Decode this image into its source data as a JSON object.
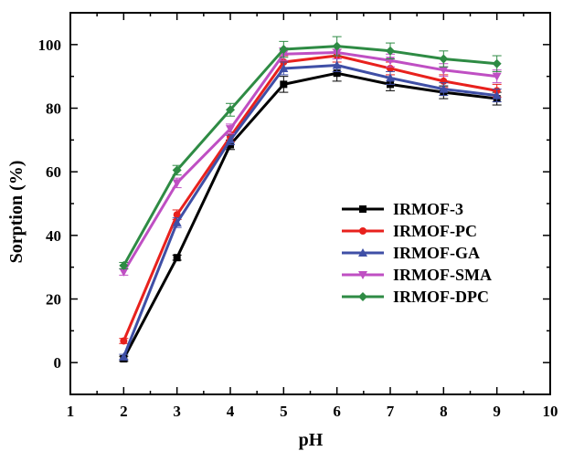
{
  "chart_data": {
    "type": "line",
    "title": "",
    "xlabel": "pH",
    "ylabel": "Sorption (%)",
    "xlim": [
      1,
      10
    ],
    "ylim": [
      -10,
      110
    ],
    "xticks": [
      1,
      2,
      3,
      4,
      5,
      6,
      7,
      8,
      9,
      10
    ],
    "yticks": [
      0,
      20,
      40,
      60,
      80,
      100
    ],
    "grid": false,
    "legend_position": "center-right",
    "x": [
      2,
      3,
      4,
      5,
      6,
      7,
      8,
      9
    ],
    "series": [
      {
        "name": "IRMOF-3",
        "color": "#000000",
        "marker": "square",
        "values": [
          1.2,
          33,
          68.5,
          87.5,
          91,
          87.5,
          85,
          83
        ],
        "errors": [
          0.8,
          0.8,
          1.5,
          2.5,
          2.5,
          2.0,
          2.0,
          2.0
        ]
      },
      {
        "name": "IRMOF-PC",
        "color": "#e8211d",
        "marker": "circle",
        "values": [
          6.8,
          46.5,
          71,
          94.5,
          96.5,
          92.5,
          88.5,
          85.5
        ],
        "errors": [
          0.8,
          1.5,
          1.5,
          2.0,
          2.0,
          2.0,
          2.0,
          2.0
        ]
      },
      {
        "name": "IRMOF-GA",
        "color": "#3f4fa6",
        "marker": "triangle-up",
        "values": [
          1.8,
          44,
          70,
          92.5,
          93.5,
          89.5,
          86,
          84
        ],
        "errors": [
          0.8,
          1.5,
          1.5,
          2.0,
          2.0,
          2.0,
          2.0,
          2.0
        ]
      },
      {
        "name": "IRMOF-SMA",
        "color": "#bf4fc3",
        "marker": "triangle-down",
        "values": [
          28.5,
          56.5,
          73.5,
          97,
          97.5,
          95,
          92,
          90
        ],
        "errors": [
          1.0,
          1.5,
          1.5,
          2.0,
          2.0,
          2.0,
          2.0,
          2.0
        ]
      },
      {
        "name": "IRMOF-DPC",
        "color": "#2e8b44",
        "marker": "diamond",
        "values": [
          30.5,
          60.5,
          79.5,
          98.5,
          99.5,
          98,
          95.5,
          94
        ],
        "errors": [
          1.0,
          1.5,
          2.0,
          2.5,
          3.0,
          2.5,
          2.5,
          2.5
        ]
      }
    ]
  }
}
